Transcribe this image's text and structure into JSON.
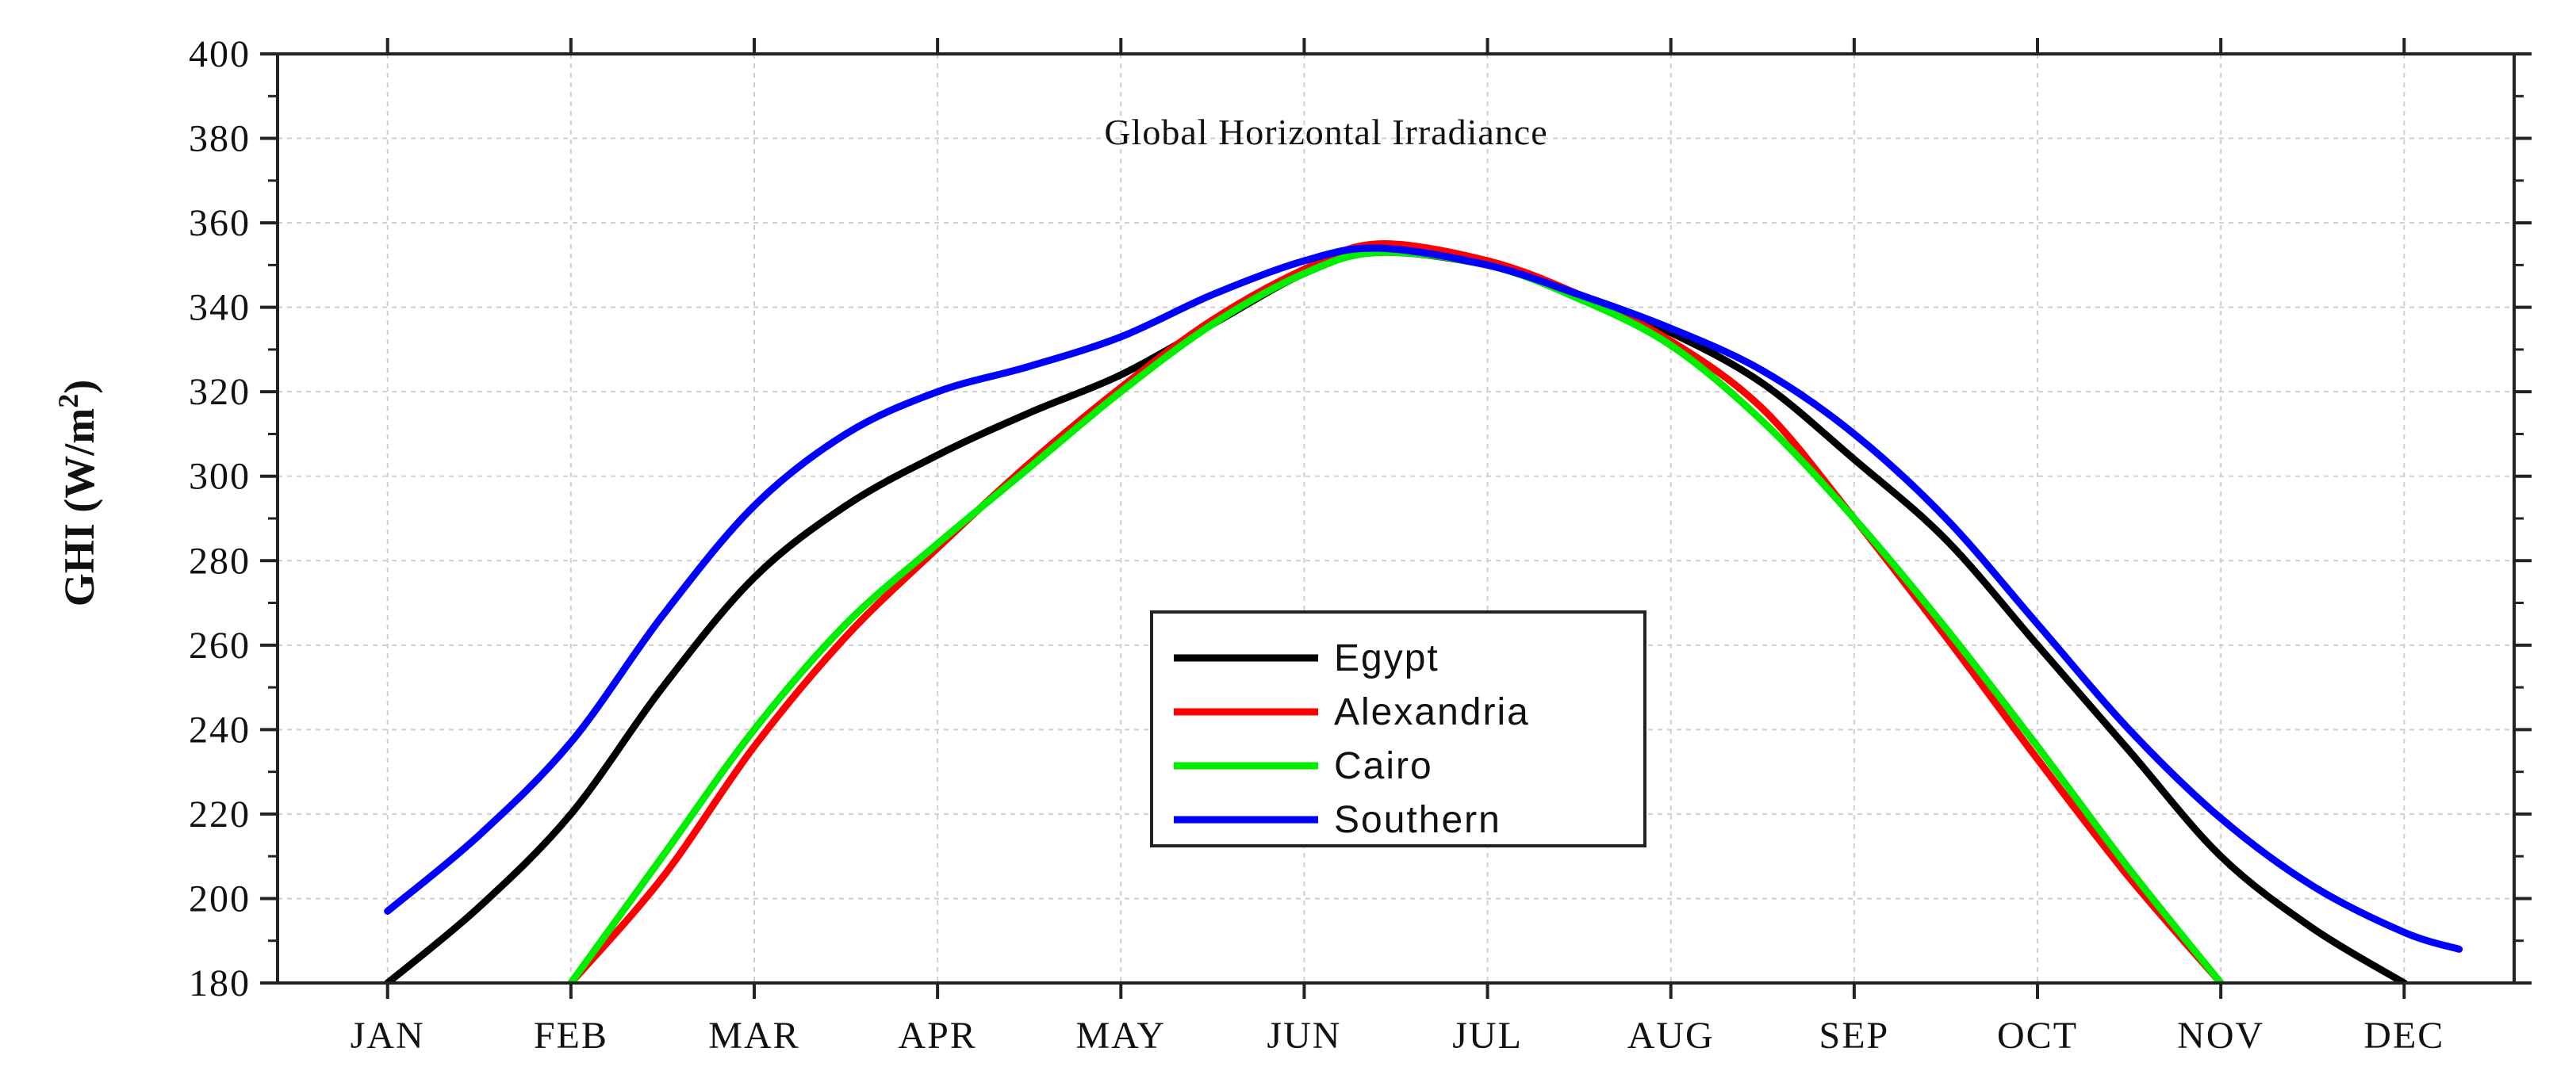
{
  "chart_data": {
    "type": "line",
    "title": "Global Horizontal Irradiance",
    "xlabel": "",
    "ylabel": "GHI (W/m",
    "ylabel_sup": "2",
    "ylabel_end": ")",
    "categories": [
      "JAN",
      "FEB",
      "MAR",
      "APR",
      "MAY",
      "JUN",
      "JUL",
      "AUG",
      "SEP",
      "OCT",
      "NOV",
      "DEC"
    ],
    "ylim": [
      180,
      400
    ],
    "yticks": [
      180,
      200,
      220,
      240,
      260,
      280,
      300,
      320,
      340,
      360,
      380,
      400
    ],
    "grid": true,
    "legend_position": "center",
    "series": [
      {
        "name": "Egypt",
        "color": "#000000",
        "points": [
          [
            1,
            180
          ],
          [
            1.5,
            198
          ],
          [
            2,
            220
          ],
          [
            2.5,
            250
          ],
          [
            3,
            276
          ],
          [
            3.5,
            293
          ],
          [
            4,
            305
          ],
          [
            4.5,
            315
          ],
          [
            5,
            324
          ],
          [
            5.5,
            336
          ],
          [
            6,
            348
          ],
          [
            6.4,
            353
          ],
          [
            7,
            350
          ],
          [
            7.5,
            343
          ],
          [
            8,
            334
          ],
          [
            8.5,
            322
          ],
          [
            9,
            304
          ],
          [
            9.5,
            285
          ],
          [
            10,
            260
          ],
          [
            10.5,
            235
          ],
          [
            11,
            210
          ],
          [
            11.5,
            193
          ],
          [
            12,
            180
          ]
        ]
      },
      {
        "name": "Alexandria",
        "color": "#ff0000",
        "points": [
          [
            2,
            180
          ],
          [
            2.5,
            205
          ],
          [
            3,
            236
          ],
          [
            3.5,
            262
          ],
          [
            4,
            283
          ],
          [
            4.5,
            303
          ],
          [
            5,
            321
          ],
          [
            5.5,
            337
          ],
          [
            6,
            349
          ],
          [
            6.4,
            355
          ],
          [
            7,
            351
          ],
          [
            7.5,
            343
          ],
          [
            8,
            332
          ],
          [
            8.5,
            316
          ],
          [
            9,
            290
          ],
          [
            9.5,
            262
          ],
          [
            10,
            233
          ],
          [
            10.5,
            205
          ],
          [
            11,
            180
          ]
        ]
      },
      {
        "name": "Cairo",
        "color": "#00ee00",
        "points": [
          [
            2,
            180
          ],
          [
            2.5,
            210
          ],
          [
            3,
            240
          ],
          [
            3.5,
            265
          ],
          [
            4,
            284
          ],
          [
            4.5,
            302
          ],
          [
            5,
            320
          ],
          [
            5.5,
            336
          ],
          [
            6,
            348
          ],
          [
            6.4,
            353
          ],
          [
            7,
            350
          ],
          [
            7.5,
            342
          ],
          [
            8,
            331
          ],
          [
            8.5,
            313
          ],
          [
            9,
            290
          ],
          [
            9.5,
            264
          ],
          [
            10,
            236
          ],
          [
            10.5,
            207
          ],
          [
            11,
            180
          ]
        ]
      },
      {
        "name": "Southern",
        "color": "#0000ff",
        "points": [
          [
            1,
            197
          ],
          [
            1.5,
            215
          ],
          [
            2,
            237
          ],
          [
            2.5,
            267
          ],
          [
            3,
            293
          ],
          [
            3.5,
            310
          ],
          [
            4,
            320
          ],
          [
            4.5,
            326
          ],
          [
            5,
            333
          ],
          [
            5.5,
            343
          ],
          [
            6,
            351
          ],
          [
            6.4,
            354
          ],
          [
            7,
            350
          ],
          [
            7.5,
            343
          ],
          [
            8,
            335
          ],
          [
            8.5,
            325
          ],
          [
            9,
            310
          ],
          [
            9.5,
            290
          ],
          [
            10,
            265
          ],
          [
            10.5,
            240
          ],
          [
            11,
            219
          ],
          [
            11.5,
            203
          ],
          [
            12,
            192
          ],
          [
            12.3,
            188
          ]
        ]
      }
    ]
  }
}
